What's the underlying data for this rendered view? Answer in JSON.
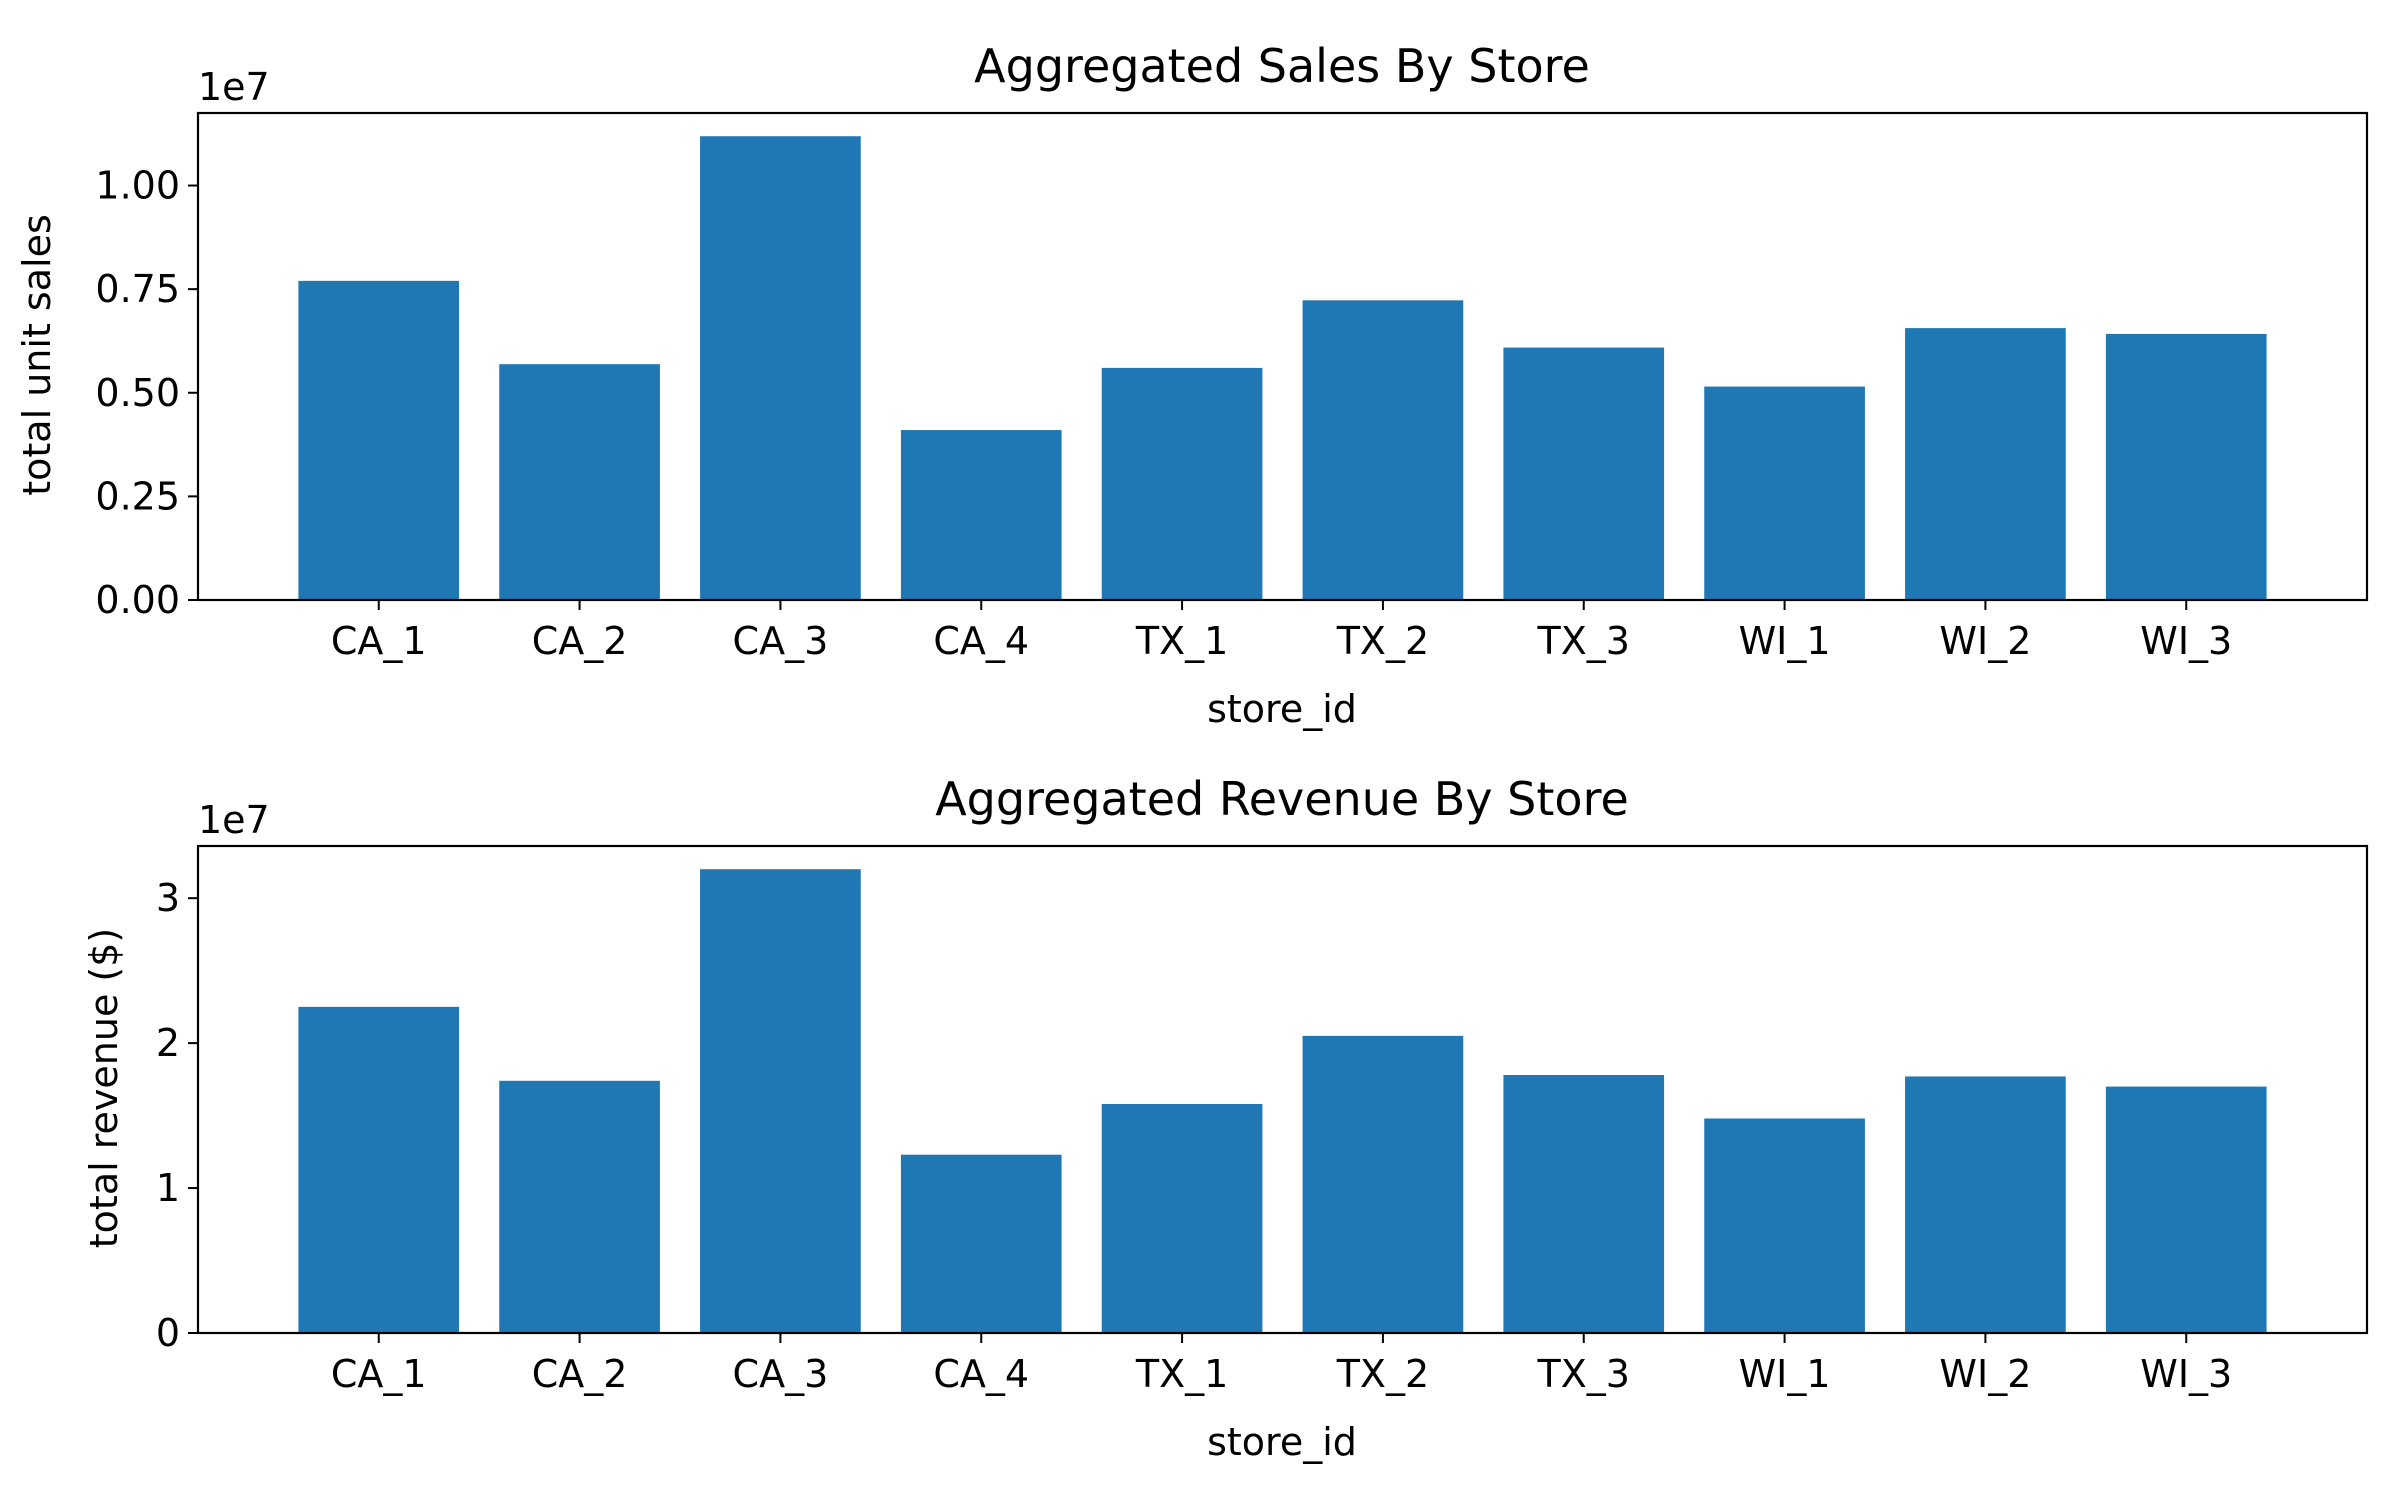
{
  "colors": {
    "bar": "#1f77b4",
    "axis": "#000000",
    "background": "#ffffff"
  },
  "chart_data": [
    {
      "type": "bar",
      "title": "Aggregated Sales By Store",
      "xlabel": "store_id",
      "ylabel": "total unit sales",
      "offset_label": "1e7",
      "categories": [
        "CA_1",
        "CA_2",
        "CA_3",
        "CA_4",
        "TX_1",
        "TX_2",
        "TX_3",
        "WI_1",
        "WI_2",
        "WI_3"
      ],
      "values": [
        7700000,
        5690000,
        11190000,
        4100000,
        5600000,
        7230000,
        6090000,
        5150000,
        6560000,
        6420000
      ],
      "ylim": [
        0,
        11750000
      ],
      "yticks": [
        0,
        2500000,
        5000000,
        7500000,
        10000000
      ],
      "ytick_labels": [
        "0.00",
        "0.25",
        "0.50",
        "0.75",
        "1.00"
      ],
      "grid": false
    },
    {
      "type": "bar",
      "title": "Aggregated Revenue By Store",
      "xlabel": "store_id",
      "ylabel": "total revenue ($)",
      "offset_label": "1e7",
      "categories": [
        "CA_1",
        "CA_2",
        "CA_3",
        "CA_4",
        "TX_1",
        "TX_2",
        "TX_3",
        "WI_1",
        "WI_2",
        "WI_3"
      ],
      "values": [
        22500000,
        17400000,
        32000000,
        12300000,
        15800000,
        20500000,
        17800000,
        14800000,
        17700000,
        17000000
      ],
      "ylim": [
        0,
        33600000
      ],
      "yticks": [
        0,
        10000000,
        20000000,
        30000000
      ],
      "ytick_labels": [
        "0",
        "1",
        "2",
        "3"
      ],
      "grid": false
    }
  ]
}
